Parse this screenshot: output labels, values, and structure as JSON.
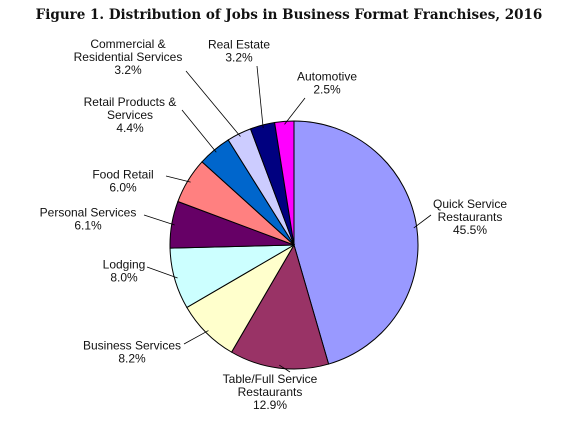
{
  "chart_data": {
    "type": "pie",
    "title": "Figure 1. Distribution of Jobs in Business Format Franchises, 2016",
    "slices": [
      {
        "label": [
          "Quick Service",
          "Restaurants"
        ],
        "pct": "45.5%",
        "value": 45.5,
        "color": "#9999ff"
      },
      {
        "label": [
          "Table/Full Service",
          "Restaurants"
        ],
        "pct": "12.9%",
        "value": 12.9,
        "color": "#993366"
      },
      {
        "label": [
          "Business Services"
        ],
        "pct": "8.2%",
        "value": 8.2,
        "color": "#ffffcc"
      },
      {
        "label": [
          "Lodging"
        ],
        "pct": "8.0%",
        "value": 8.0,
        "color": "#ccffff"
      },
      {
        "label": [
          "Personal Services"
        ],
        "pct": "6.1%",
        "value": 6.1,
        "color": "#660066"
      },
      {
        "label": [
          "Food Retail"
        ],
        "pct": "6.0%",
        "value": 6.0,
        "color": "#ff8080"
      },
      {
        "label": [
          "Retail Products &",
          "Services"
        ],
        "pct": "4.4%",
        "value": 4.4,
        "color": "#0066cc"
      },
      {
        "label": [
          "Commercial &",
          "Residential Services"
        ],
        "pct": "3.2%",
        "value": 3.2,
        "color": "#ccccff"
      },
      {
        "label": [
          "Real Estate"
        ],
        "pct": "3.2%",
        "value": 3.2,
        "color": "#000080"
      },
      {
        "label": [
          "Automotive"
        ],
        "pct": "2.5%",
        "value": 2.5,
        "color": "#ff00ff"
      }
    ]
  }
}
